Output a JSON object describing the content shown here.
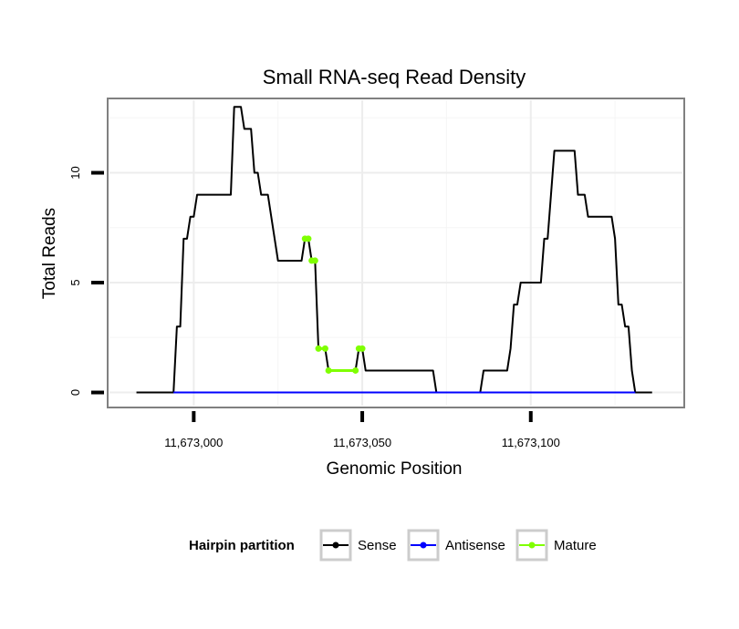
{
  "chart_data": {
    "type": "line",
    "title": "Small RNA-seq Read Density",
    "xlabel": "Genomic Position",
    "ylabel": "Total Reads",
    "xlim": [
      11672975,
      11673145
    ],
    "ylim": [
      -0.6,
      13.3
    ],
    "x_ticks": [
      {
        "value": 11673000,
        "label": "11,673,000"
      },
      {
        "value": 11673050,
        "label": "11,673,050"
      },
      {
        "value": 11673100,
        "label": "11,673,100"
      }
    ],
    "y_ticks": [
      {
        "value": 0,
        "label": "0"
      },
      {
        "value": 5,
        "label": "5"
      },
      {
        "value": 10,
        "label": "10"
      }
    ],
    "grid": true,
    "legend": {
      "title": "Hairpin partition",
      "position": "bottom",
      "items": [
        {
          "name": "Sense",
          "color": "#000000"
        },
        {
          "name": "Antisense",
          "color": "#0000ff"
        },
        {
          "name": "Mature",
          "color": "#7fff00"
        }
      ]
    },
    "series": [
      {
        "name": "Sense",
        "color": "#000000",
        "points": [
          [
            11672983,
            0
          ],
          [
            11672994,
            0
          ],
          [
            11672995,
            3
          ],
          [
            11672996,
            3
          ],
          [
            11672997,
            7
          ],
          [
            11672998,
            7
          ],
          [
            11672999,
            8
          ],
          [
            11673000,
            8
          ],
          [
            11673001,
            9
          ],
          [
            11673011,
            9
          ],
          [
            11673012,
            13
          ],
          [
            11673014,
            13
          ],
          [
            11673015,
            12
          ],
          [
            11673017,
            12
          ],
          [
            11673018,
            10
          ],
          [
            11673019,
            10
          ],
          [
            11673020,
            9
          ],
          [
            11673022,
            9
          ],
          [
            11673023,
            8
          ],
          [
            11673025,
            6
          ],
          [
            11673032,
            6
          ],
          [
            11673033,
            7
          ],
          [
            11673034,
            7
          ],
          [
            11673035,
            6
          ],
          [
            11673036,
            6
          ],
          [
            11673037,
            2
          ],
          [
            11673039,
            2
          ],
          [
            11673040,
            1
          ],
          [
            11673048,
            1
          ],
          [
            11673049,
            2
          ],
          [
            11673050,
            2
          ],
          [
            11673051,
            1
          ],
          [
            11673071,
            1
          ],
          [
            11673072,
            0
          ],
          [
            11673085,
            0
          ],
          [
            11673086,
            1
          ],
          [
            11673093,
            1
          ],
          [
            11673094,
            2
          ],
          [
            11673095,
            4
          ],
          [
            11673096,
            4
          ],
          [
            11673097,
            5
          ],
          [
            11673103,
            5
          ],
          [
            11673104,
            7
          ],
          [
            11673105,
            7
          ],
          [
            11673106,
            9
          ],
          [
            11673107,
            11
          ],
          [
            11673113,
            11
          ],
          [
            11673114,
            9
          ],
          [
            11673116,
            9
          ],
          [
            11673117,
            8
          ],
          [
            11673124,
            8
          ],
          [
            11673125,
            7
          ],
          [
            11673126,
            4
          ],
          [
            11673127,
            4
          ],
          [
            11673128,
            3
          ],
          [
            11673129,
            3
          ],
          [
            11673130,
            1
          ],
          [
            11673131,
            0
          ],
          [
            11673136,
            0
          ]
        ]
      },
      {
        "name": "Antisense",
        "color": "#0000ff",
        "points": [
          [
            11672994,
            0
          ],
          [
            11673131,
            0
          ]
        ]
      },
      {
        "name": "Mature",
        "color": "#7fff00",
        "segments": [
          [
            [
              11673033,
              7
            ],
            [
              11673034,
              7
            ]
          ],
          [
            [
              11673035,
              6
            ],
            [
              11673036,
              6
            ]
          ],
          [
            [
              11673037,
              2
            ],
            [
              11673039,
              2
            ]
          ],
          [
            [
              11673040,
              1
            ],
            [
              11673048,
              1
            ]
          ],
          [
            [
              11673049,
              2
            ],
            [
              11673050,
              2
            ]
          ]
        ]
      }
    ]
  }
}
